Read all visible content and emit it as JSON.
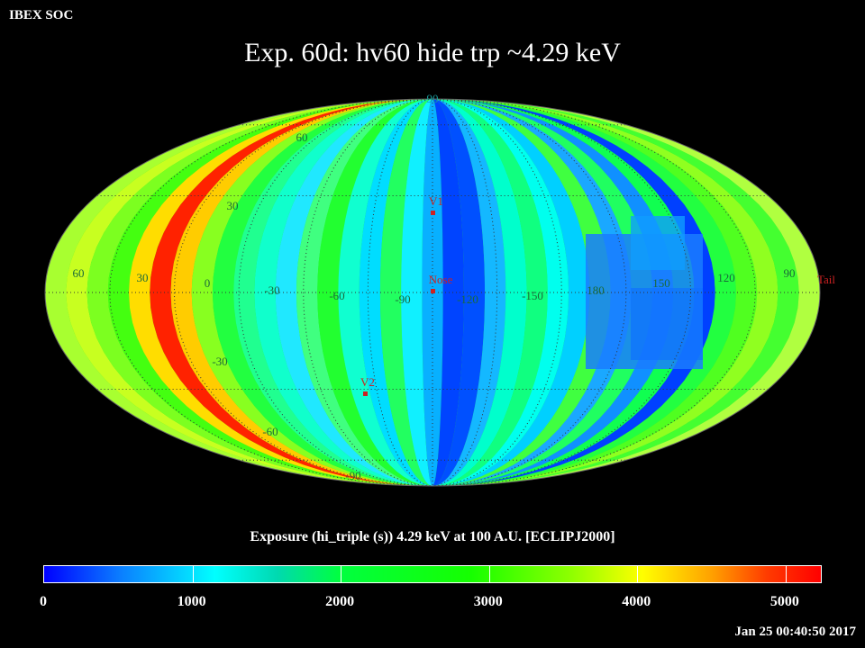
{
  "header": {
    "org": "IBEX SOC",
    "title": "Exp.   60d: hv60 hide trp ~4.29 keV"
  },
  "map": {
    "projection": "mollweide",
    "lat_labels": [
      "90",
      "60",
      "30",
      "-30",
      "-60",
      "-90"
    ],
    "lon_labels": [
      "60",
      "30",
      "0",
      "-30",
      "-60",
      "-90",
      "-120",
      "-150",
      "180",
      "150",
      "120",
      "90"
    ],
    "markers": [
      {
        "name": "V1",
        "label": "V1"
      },
      {
        "name": "Nose",
        "label": "Nose"
      },
      {
        "name": "V2",
        "label": "V2"
      },
      {
        "name": "Tail",
        "label": "Tail"
      }
    ],
    "marker_color": "#cc2222",
    "grid_color": "#333333"
  },
  "colorbar": {
    "label": "Exposure (hi_triple (s))  4.29 keV at 100 A.U. [ECLIPJ2000]",
    "ticks": [
      "0",
      "1000",
      "2000",
      "3000",
      "4000",
      "5000"
    ],
    "range": [
      0,
      5250
    ]
  },
  "footer": {
    "timestamp": "Jan 25 00:40:50 2017"
  }
}
